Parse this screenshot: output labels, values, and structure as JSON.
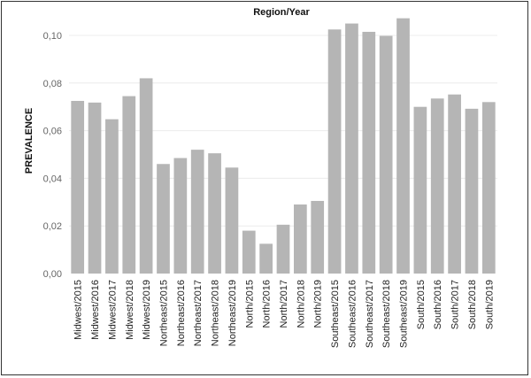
{
  "chart_data": {
    "type": "bar",
    "title": "Region/Year",
    "xlabel": "",
    "ylabel": "PREVALENCE",
    "ylim": [
      0,
      0.105
    ],
    "yticks": [
      0.0,
      0.02,
      0.04,
      0.06,
      0.08,
      0.1
    ],
    "ytick_labels": [
      "0,00",
      "0,02",
      "0,04",
      "0,06",
      "0,08",
      "0,10"
    ],
    "grid": true,
    "bar_color": "#b5b5b5",
    "categories": [
      "Midwest/2015",
      "Midwest/2016",
      "Midwest/2017",
      "Midwest/2018",
      "Midwest/2019",
      "Northeast/2015",
      "Northeast/2016",
      "Northeast/2017",
      "Northeast/2018",
      "Northeast/2019",
      "North/2015",
      "North/2016",
      "North/2017",
      "North/2018",
      "North/2019",
      "Southeast/2015",
      "Southeast/2016",
      "Southeast/2017",
      "Southeast/2018",
      "Southeast/2019",
      "South/2015",
      "South/2016",
      "South/2017",
      "South/2018",
      "South/2019"
    ],
    "values": [
      0.0725,
      0.0718,
      0.0648,
      0.0745,
      0.082,
      0.046,
      0.0485,
      0.052,
      0.0505,
      0.0445,
      0.018,
      0.0125,
      0.0205,
      0.029,
      0.0305,
      0.1025,
      0.105,
      0.1015,
      0.0998,
      0.1072,
      0.07,
      0.0735,
      0.0752,
      0.0692,
      0.072
    ]
  }
}
